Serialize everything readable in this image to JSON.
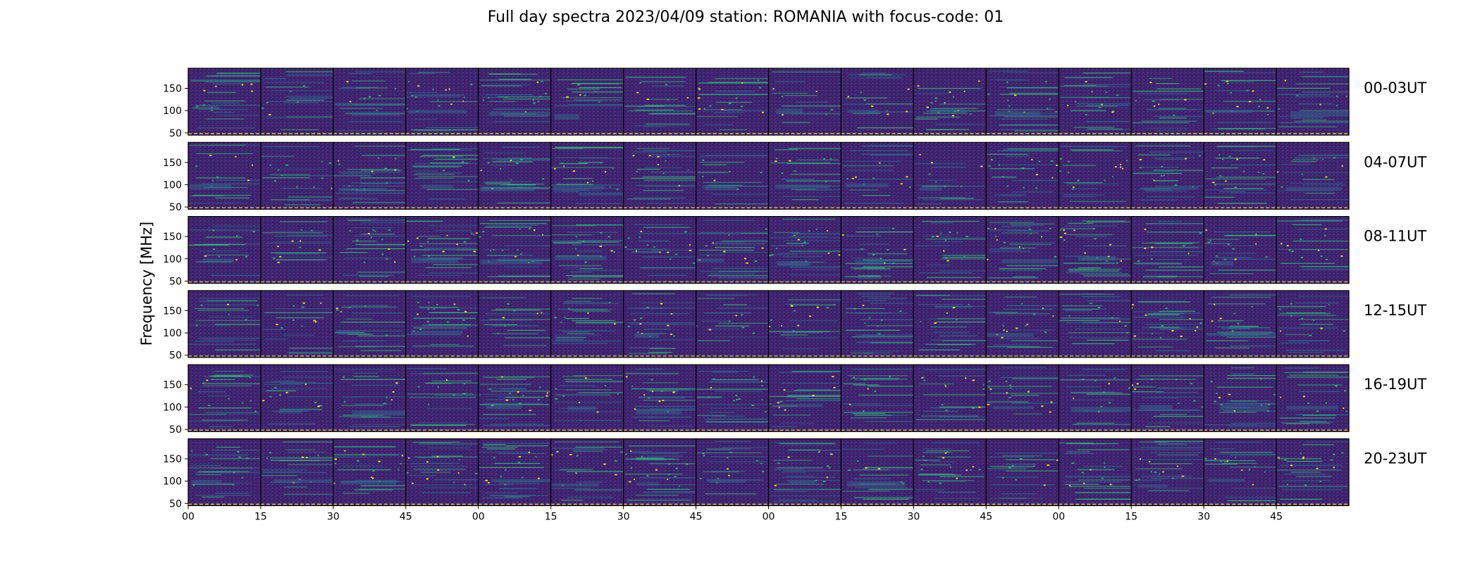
{
  "chart_data": {
    "type": "heatmap",
    "title": "Full day spectra 2023/04/09 station: ROMANIA with focus-code: 01",
    "ylabel": "Frequency [MHz]",
    "xlabel": "",
    "rows": [
      "00-03UT",
      "04-07UT",
      "08-11UT",
      "12-15UT",
      "16-19UT",
      "20-23UT"
    ],
    "panels_per_row": 16,
    "minutes_per_panel": 15,
    "y_ticks": [
      50,
      100,
      150
    ],
    "ylim": [
      45,
      195
    ],
    "x_tick_labels": [
      "00",
      "15",
      "30",
      "45",
      "00",
      "15",
      "30",
      "45",
      "00",
      "15",
      "30",
      "45",
      "00",
      "15",
      "30",
      "45"
    ],
    "colormap": "viridis",
    "colors": {
      "background": "#3f1f6a",
      "low": "#440154",
      "mid": "#31688e",
      "high": "#35b779",
      "peak": "#fde725",
      "marker": "#e7c84a"
    }
  }
}
